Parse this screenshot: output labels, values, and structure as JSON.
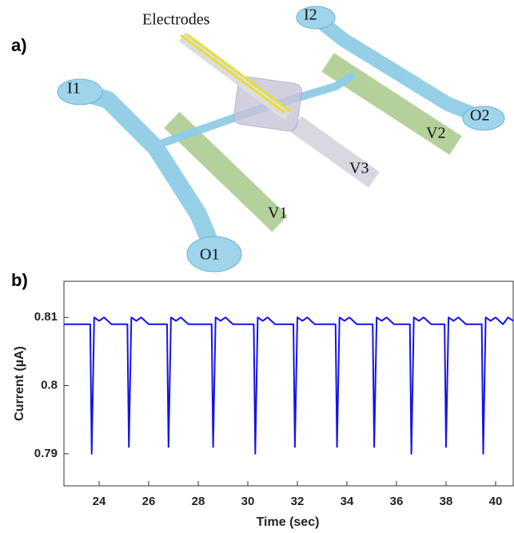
{
  "diagram": {
    "panel_label": "a)",
    "labels": [
      "Electrodes",
      "I1",
      "I2",
      "O1",
      "O2",
      "V1",
      "V2",
      "V3"
    ]
  },
  "chart_data": {
    "type": "line",
    "panel_label": "b)",
    "x_label": "Time (sec)",
    "y_label": "Current (µA)",
    "x": [
      22.58,
      23.64,
      23.7,
      23.8,
      24.0,
      24.2,
      24.5,
      25.14,
      25.2,
      25.3,
      25.5,
      25.7,
      26.0,
      26.74,
      26.8,
      26.9,
      27.1,
      27.3,
      27.6,
      28.54,
      28.6,
      28.7,
      28.9,
      29.1,
      29.4,
      30.24,
      30.3,
      30.4,
      30.6,
      30.8,
      31.1,
      31.84,
      31.9,
      32.0,
      32.2,
      32.4,
      32.7,
      33.54,
      33.6,
      33.7,
      33.9,
      34.1,
      34.4,
      35.04,
      35.1,
      35.2,
      35.4,
      35.6,
      35.9,
      36.54,
      36.6,
      36.7,
      36.9,
      37.1,
      37.4,
      37.94,
      38.0,
      38.1,
      38.3,
      38.5,
      38.8,
      39.44,
      39.5,
      39.6,
      39.8,
      40.0,
      40.3,
      40.5,
      40.71
    ],
    "series": [
      {
        "color": "#1414e6",
        "values": [
          0.809,
          0.809,
          0.79,
          0.81,
          0.8095,
          0.81,
          0.809,
          0.809,
          0.791,
          0.81,
          0.8095,
          0.81,
          0.809,
          0.809,
          0.791,
          0.81,
          0.8095,
          0.81,
          0.809,
          0.809,
          0.791,
          0.81,
          0.8095,
          0.81,
          0.809,
          0.809,
          0.79,
          0.81,
          0.8095,
          0.81,
          0.809,
          0.809,
          0.791,
          0.81,
          0.8095,
          0.81,
          0.809,
          0.809,
          0.791,
          0.81,
          0.8095,
          0.81,
          0.809,
          0.809,
          0.791,
          0.81,
          0.8095,
          0.81,
          0.809,
          0.809,
          0.79,
          0.81,
          0.8095,
          0.81,
          0.809,
          0.809,
          0.791,
          0.81,
          0.8095,
          0.81,
          0.809,
          0.809,
          0.79,
          0.81,
          0.8095,
          0.81,
          0.809,
          0.81,
          0.8095
        ]
      }
    ],
    "xlim": [
      22.58,
      40.71
    ],
    "ylim": [
      0.7853,
      0.8153
    ],
    "xticks": [
      24,
      26,
      28,
      30,
      32,
      34,
      36,
      38,
      40
    ],
    "yticks": [
      0.79,
      0.8,
      0.81
    ],
    "grid": false
  }
}
